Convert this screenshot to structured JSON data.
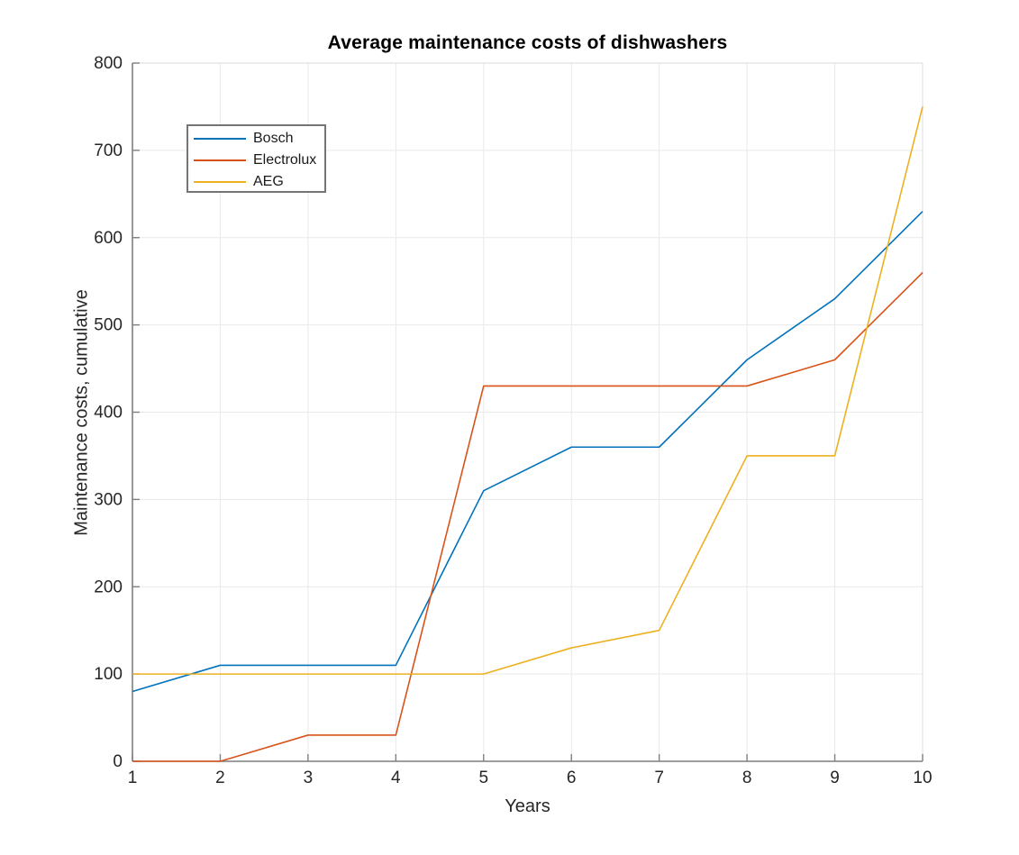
{
  "figure": {
    "background": "#ffffff"
  },
  "chart_data": {
    "type": "line",
    "title": "Average maintenance costs of dishwashers",
    "xlabel": "Years",
    "ylabel": "Maintenance costs, cumulative",
    "x": [
      1,
      2,
      3,
      4,
      5,
      6,
      7,
      8,
      9,
      10
    ],
    "series": [
      {
        "name": "Bosch",
        "color": "#0072BD",
        "values": [
          80,
          110,
          110,
          110,
          310,
          360,
          360,
          460,
          530,
          630
        ]
      },
      {
        "name": "Electrolux",
        "color": "#D95319",
        "values": [
          0,
          0,
          30,
          30,
          430,
          430,
          430,
          430,
          460,
          560
        ]
      },
      {
        "name": "AEG",
        "color": "#EDB120",
        "values": [
          100,
          100,
          100,
          100,
          100,
          130,
          150,
          350,
          350,
          750
        ]
      }
    ],
    "xlim": [
      1,
      10
    ],
    "ylim": [
      0,
      800
    ],
    "x_ticks": [
      "1",
      "2",
      "3",
      "4",
      "5",
      "6",
      "7",
      "8",
      "9",
      "10"
    ],
    "y_ticks": [
      "0",
      "100",
      "200",
      "300",
      "400",
      "500",
      "600",
      "700",
      "800"
    ],
    "grid": true,
    "legend_position": "upper-left"
  },
  "style": {
    "axis_color": "#7f7f7f",
    "box_color": "#e2e2e2",
    "grid_color": "#e9e9e9",
    "tick_label_color": "#262626",
    "line_width": 1.6,
    "tick_length": 8
  }
}
